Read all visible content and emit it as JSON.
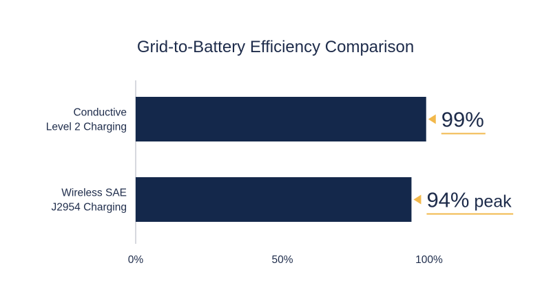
{
  "chart_data": {
    "type": "bar",
    "orientation": "horizontal",
    "title": "Grid-to-Battery Efficiency Comparison",
    "categories": [
      [
        "Conductive",
        "Level 2 Charging"
      ],
      [
        "Wireless SAE",
        "J2954 Charging"
      ]
    ],
    "values": [
      99,
      94
    ],
    "value_labels": [
      {
        "number": "99%",
        "suffix": ""
      },
      {
        "number": "94%",
        "suffix": "peak"
      }
    ],
    "xlim": [
      0,
      100
    ],
    "x_ticks": [
      0,
      50,
      100
    ],
    "x_tick_labels": [
      "0%",
      "50%",
      "100%"
    ],
    "grid": false,
    "legend": "none",
    "colors": {
      "bar": "#14284b",
      "accent": "#f2b84b",
      "text": "#1d2b4a",
      "axis": "#c8ccd4"
    }
  }
}
